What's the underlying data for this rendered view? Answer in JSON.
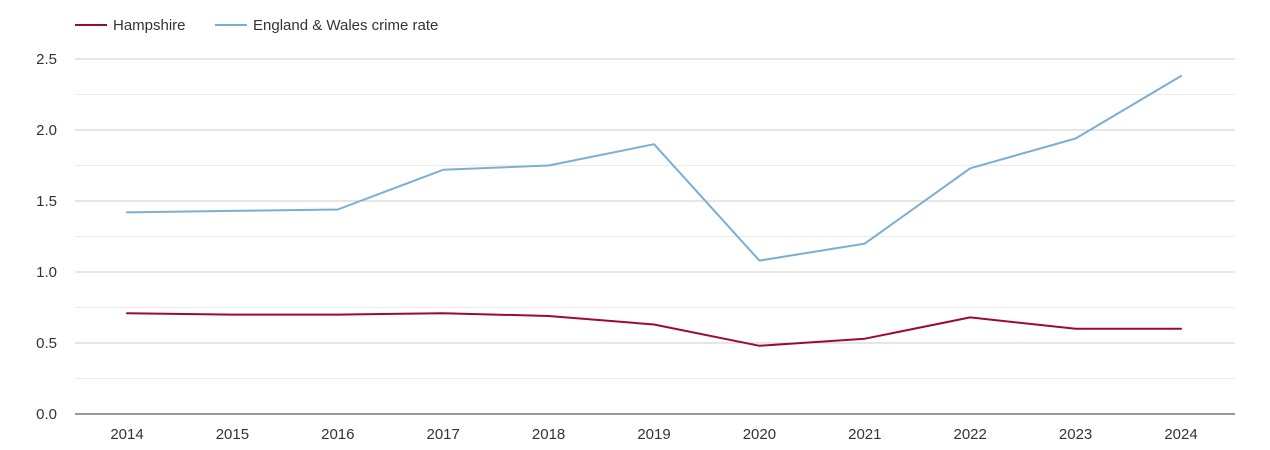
{
  "chart_data": {
    "type": "line",
    "title": "",
    "xlabel": "",
    "ylabel": "",
    "categories": [
      "2014",
      "2015",
      "2016",
      "2017",
      "2018",
      "2019",
      "2020",
      "2021",
      "2022",
      "2023",
      "2024"
    ],
    "ylim": [
      0,
      2.5
    ],
    "yticks": [
      "0.0",
      "0.5",
      "1.0",
      "1.5",
      "2.0",
      "2.5"
    ],
    "grid": true,
    "legend_position": "top-left",
    "series": [
      {
        "name": "Hampshire",
        "color": "#9b0a35",
        "values": [
          0.71,
          0.7,
          0.7,
          0.71,
          0.69,
          0.63,
          0.48,
          0.53,
          0.68,
          0.6,
          0.6
        ]
      },
      {
        "name": "England & Wales crime rate",
        "color": "#7aafd3",
        "values": [
          1.42,
          1.43,
          1.44,
          1.72,
          1.75,
          1.9,
          1.08,
          1.2,
          1.73,
          1.94,
          2.38
        ]
      }
    ]
  }
}
